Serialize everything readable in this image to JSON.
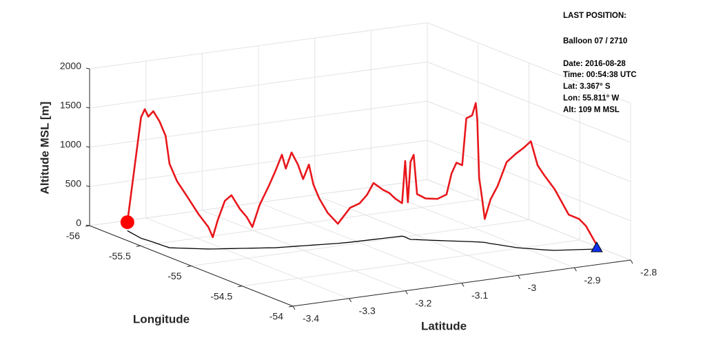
{
  "chart_data": {
    "type": "line3d",
    "xlabel": "Latitude",
    "ylabel": "Longitude",
    "zlabel": "Altitude MSL [m]",
    "xlim": [
      -3.4,
      -2.8
    ],
    "xticks": [
      -3.4,
      -3.3,
      -3.2,
      -3.1,
      -3,
      -2.9,
      -2.8
    ],
    "ylim": [
      -56,
      -54
    ],
    "yticks": [
      -56,
      -55.5,
      -55,
      -54.5,
      -54
    ],
    "zlim": [
      0,
      2000
    ],
    "zticks": [
      0,
      500,
      1000,
      1500,
      2000
    ],
    "grid": true,
    "color": "#e8161b",
    "ground_color": "#000000",
    "start_marker_color": "#1030ee",
    "end_marker_color": "#ff0000",
    "x": [
      -2.808,
      -2.8235,
      -2.833,
      -2.848,
      -2.868,
      -2.88,
      -2.887,
      -2.894,
      -2.902,
      -2.91,
      -2.917,
      -2.924,
      -2.93,
      -2.934,
      -2.937,
      -2.94,
      -2.942,
      -2.944,
      -2.948,
      -2.955,
      -2.96,
      -2.967,
      -2.973,
      -2.979,
      -2.99,
      -3.004,
      -3.014,
      -3.018,
      -3.022,
      -3.022,
      -3.021,
      -3.022,
      -3.034,
      -3.044,
      -3.055,
      -3.071,
      -3.082,
      -3.095,
      -3.111,
      -3.131,
      -3.147,
      -3.16,
      -3.169,
      -3.176,
      -3.185,
      -3.193,
      -3.203,
      -3.212,
      -3.218,
      -3.228,
      -3.237,
      -3.25,
      -3.26,
      -3.268,
      -3.277,
      -3.289,
      -3.298,
      -3.308,
      -3.315,
      -3.321,
      -3.333,
      -3.346,
      -3.359,
      -3.368,
      -3.369,
      -3.37,
      -3.371,
      -3.372,
      -3.373,
      -3.374,
      -3.367
    ],
    "y": [
      -54.289,
      -54.31,
      -54.324,
      -54.344,
      -54.371,
      -54.406,
      -54.433,
      -54.461,
      -54.488,
      -54.524,
      -54.572,
      -54.621,
      -54.659,
      -54.693,
      -54.706,
      -54.715,
      -54.722,
      -54.726,
      -54.74,
      -54.758,
      -54.771,
      -54.789,
      -54.804,
      -54.82,
      -54.849,
      -54.887,
      -54.916,
      -54.927,
      -54.936,
      -54.962,
      -54.994,
      -55.019,
      -55.021,
      -55.023,
      -55.025,
      -55.029,
      -55.031,
      -55.034,
      -55.037,
      -55.047,
      -55.06,
      -55.07,
      -55.077,
      -55.083,
      -55.09,
      -55.097,
      -55.104,
      -55.111,
      -55.116,
      -55.124,
      -55.139,
      -55.158,
      -55.174,
      -55.186,
      -55.201,
      -55.219,
      -55.234,
      -55.248,
      -55.259,
      -55.269,
      -55.299,
      -55.334,
      -55.366,
      -55.391,
      -55.424,
      -55.479,
      -55.534,
      -55.577,
      -55.607,
      -55.638,
      -55.811
    ],
    "values": [
      50,
      300,
      390,
      450,
      780,
      950,
      1070,
      1370,
      1280,
      1190,
      1070,
      750,
      560,
      300,
      590,
      820,
      1550,
      1770,
      1610,
      1570,
      970,
      1000,
      860,
      590,
      530,
      530,
      580,
      1080,
      990,
      460,
      970,
      420,
      490,
      570,
      620,
      720,
      580,
      480,
      440,
      250,
      400,
      590,
      770,
      1030,
      850,
      1040,
      1200,
      1000,
      1180,
      980,
      790,
      550,
      270,
      400,
      500,
      680,
      610,
      370,
      150,
      280,
      440,
      650,
      850,
      1070,
      1410,
      1570,
      1670,
      1580,
      1660,
      1540,
      109
    ],
    "annotation": [
      "LAST POSITION:",
      "Balloon 07 / 2710",
      "Date: 2016-08-28",
      "Time: 00:54:38 UTC",
      "Lat:  3.367° S",
      "Lon:  55.811° W",
      "Alt:  109 M MSL"
    ]
  }
}
